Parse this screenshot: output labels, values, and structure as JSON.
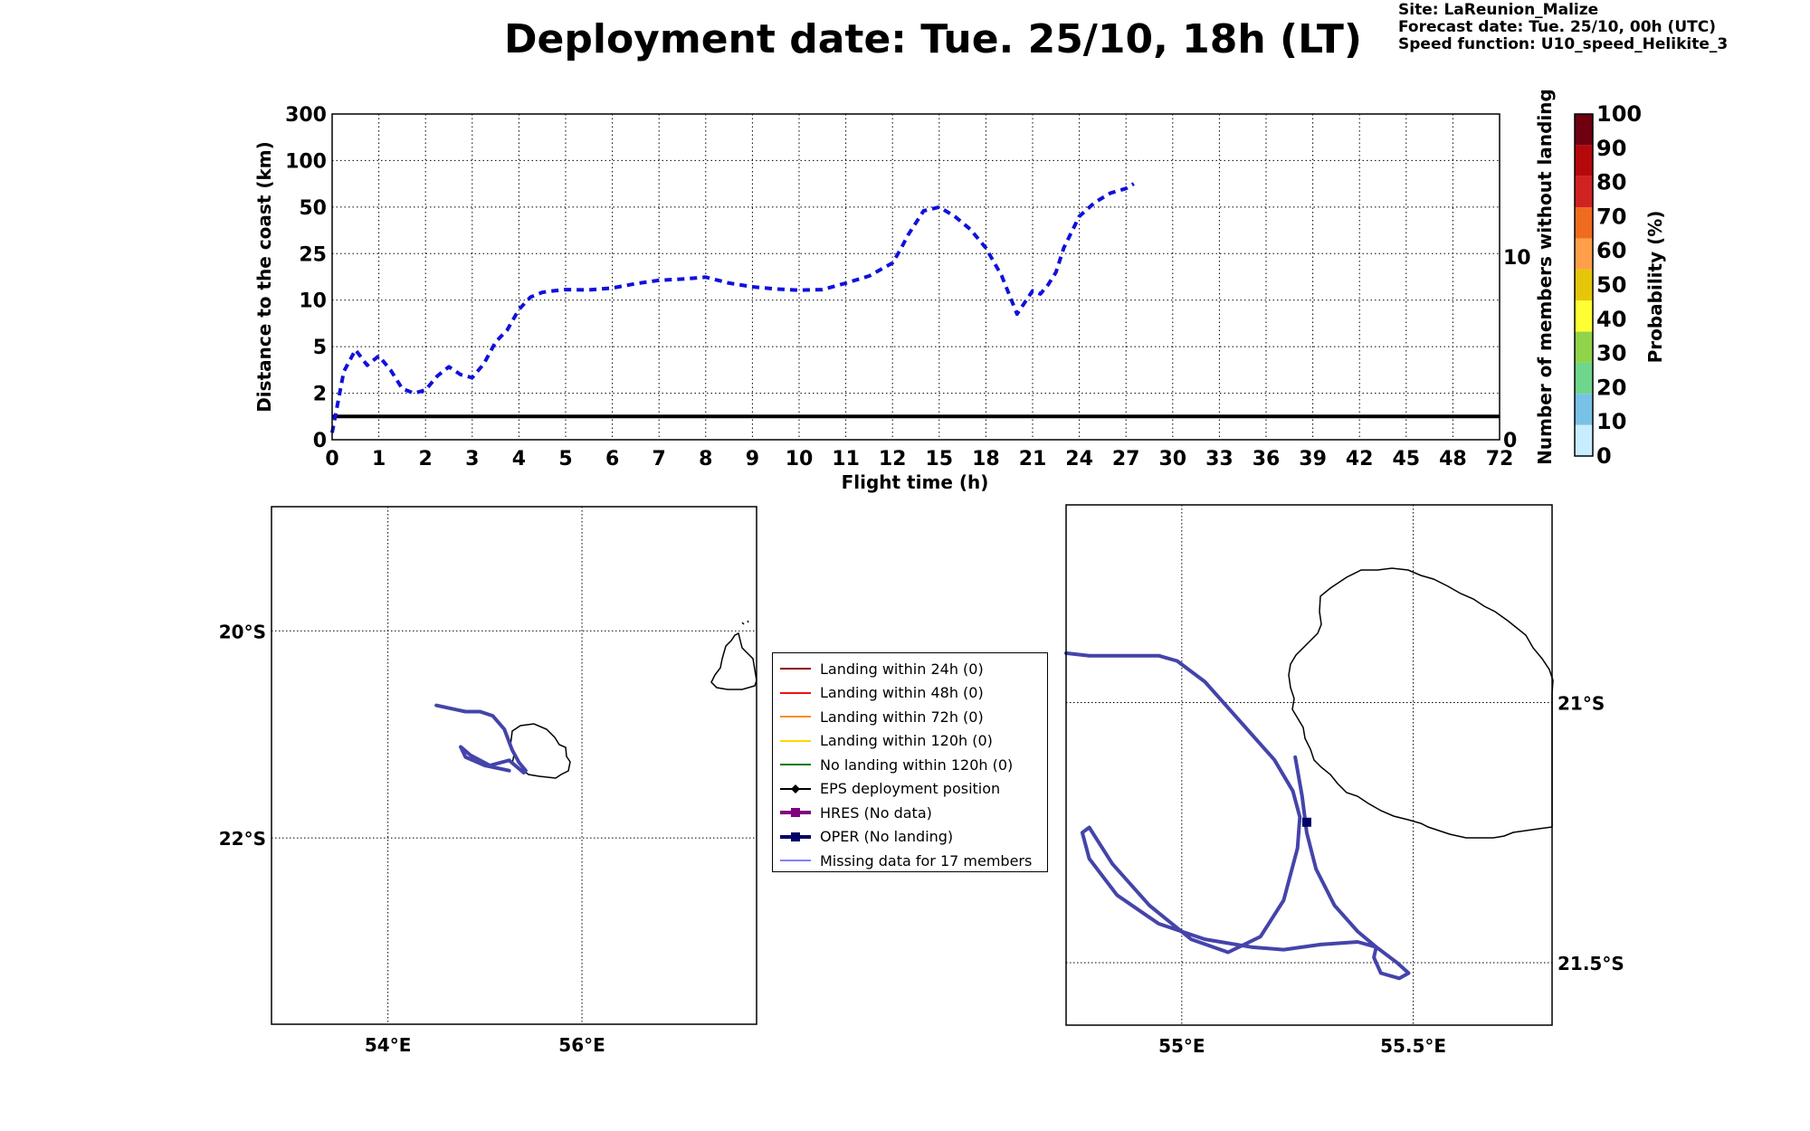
{
  "header": {
    "title": "Deployment date: Tue. 25/10, 18h (LT)",
    "site": "Site: LaReunion_Malize",
    "forecast": "Forecast date: Tue. 25/10, 00h (UTC)",
    "speed": "Speed function: U10_speed_Helikite_3"
  },
  "colors": {
    "series": "#1010dd",
    "track": "#4444aa",
    "threshold": "#000000"
  },
  "legend": [
    {
      "label": "Landing within 24h (0)",
      "color": "#8b0000",
      "marker": "none",
      "width": 2
    },
    {
      "label": "Landing within 48h (0)",
      "color": "#ee1111",
      "marker": "none",
      "width": 2
    },
    {
      "label": "Landing within 72h (0)",
      "color": "#ff8c00",
      "marker": "none",
      "width": 2
    },
    {
      "label": "Landing within 120h (0)",
      "color": "#ffd700",
      "marker": "none",
      "width": 2
    },
    {
      "label": "No landing within 120h (0)",
      "color": "#007a00",
      "marker": "none",
      "width": 2
    },
    {
      "label": "EPS deployment position",
      "color": "#000000",
      "marker": "diamond",
      "width": 2
    },
    {
      "label": "HRES (No data)",
      "color": "#800080",
      "marker": "square",
      "width": 4
    },
    {
      "label": "OPER (No landing)",
      "color": "#000066",
      "marker": "square",
      "width": 4
    },
    {
      "label": "Missing data for 17 members",
      "color": "#5555ff",
      "marker": "none",
      "width": 1.5
    }
  ],
  "chart_data": [
    {
      "type": "line",
      "xlabel": "Flight time (h)",
      "ylabel": "Distance to the coast (km)",
      "y2label": "Number of members without landing",
      "x_ticks": [
        "0",
        "1",
        "2",
        "3",
        "4",
        "5",
        "6",
        "7",
        "8",
        "9",
        "10",
        "11",
        "12",
        "15",
        "18",
        "21",
        "24",
        "27",
        "30",
        "33",
        "36",
        "39",
        "42",
        "45",
        "48",
        "72"
      ],
      "y_ticks": [
        "0",
        "2",
        "5",
        "10",
        "25",
        "50",
        "100",
        "300"
      ],
      "y2_ticks": [
        "0",
        "10"
      ],
      "threshold_km": 1,
      "grid": true,
      "series": [
        {
          "style": "dashed",
          "x": [
            0,
            0.25,
            0.5,
            0.75,
            1,
            1.25,
            1.5,
            1.75,
            2,
            2.25,
            2.5,
            2.75,
            3,
            3.25,
            3.5,
            3.75,
            4,
            4.25,
            4.5,
            4.75,
            5,
            5.5,
            6,
            6.5,
            7,
            7.5,
            8,
            8.5,
            9,
            9.5,
            10,
            10.5,
            11,
            11.5,
            12,
            12.5,
            13,
            14,
            15,
            16,
            17,
            18,
            19,
            20,
            21,
            21.5,
            22,
            22.5,
            23,
            24,
            25,
            26,
            27,
            27.5
          ],
          "y": [
            0.3,
            3.4,
            4.8,
            3.8,
            4.4,
            3.5,
            2.3,
            2.0,
            2.2,
            3.1,
            3.7,
            3.2,
            3.0,
            3.9,
            5.5,
            6.8,
            9.0,
            11.0,
            12.5,
            13.0,
            13.4,
            13.3,
            13.9,
            15.3,
            16.4,
            16.8,
            17.4,
            15.5,
            14.3,
            13.6,
            13.2,
            13.4,
            15.5,
            17.8,
            22.0,
            27.0,
            35.0,
            48.0,
            50.0,
            45.0,
            38.0,
            28.0,
            18.0,
            8.5,
            13.0,
            12.0,
            15.0,
            19.0,
            28.0,
            45.0,
            55.0,
            65.0,
            70.0,
            75.0
          ]
        }
      ]
    },
    {
      "type": "map",
      "lon_ticks": [
        "54°E",
        "56°E"
      ],
      "lat_ticks": [
        "20°S",
        "22°S"
      ],
      "extent": {
        "lon": [
          52.8,
          57.8
        ],
        "lat": [
          -18.8,
          -23.8
        ]
      },
      "grid_lon": [
        54,
        56
      ],
      "grid_lat": [
        -20,
        -22
      ],
      "track": {
        "lon": [
          55.25,
          55.0,
          54.8,
          54.75,
          54.85,
          55.05,
          55.25,
          55.4,
          55.42,
          55.35,
          55.28,
          55.2,
          55.08,
          54.95,
          54.8,
          54.65,
          54.5
        ],
        "lat": [
          -21.35,
          -21.3,
          -21.22,
          -21.12,
          -21.2,
          -21.3,
          -21.25,
          -21.37,
          -21.35,
          -21.27,
          -21.15,
          -20.95,
          -20.82,
          -20.78,
          -20.78,
          -20.75,
          -20.72
        ]
      }
    },
    {
      "type": "map",
      "lon_ticks": [
        "55°E",
        "55.5°E"
      ],
      "lat_ticks": [
        "21°S",
        "21.5°S"
      ],
      "extent": {
        "lon": [
          54.75,
          55.8
        ],
        "lat": [
          -20.62,
          -21.62
        ]
      },
      "grid_lon": [
        55.0,
        55.5
      ],
      "grid_lat": [
        -21.0,
        -21.5
      ],
      "oper_point": {
        "lon": 55.27,
        "lat": -21.23
      },
      "track": {
        "lon": [
          55.245,
          55.26,
          55.27,
          55.29,
          55.33,
          55.38,
          55.42,
          55.465,
          55.49,
          55.47,
          55.43,
          55.415,
          55.42,
          55.38,
          55.3,
          55.22,
          55.15,
          55.05,
          54.95,
          54.86,
          54.8,
          54.785,
          54.8,
          54.85,
          54.93,
          55.02,
          55.1,
          55.17,
          55.22,
          55.25,
          55.255,
          55.24,
          55.2,
          55.13,
          55.05,
          54.99,
          54.95,
          54.9,
          54.8,
          54.75
        ],
        "lat": [
          -21.105,
          -21.18,
          -21.25,
          -21.32,
          -21.39,
          -21.44,
          -21.47,
          -21.5,
          -21.52,
          -21.53,
          -21.52,
          -21.49,
          -21.47,
          -21.46,
          -21.465,
          -21.475,
          -21.47,
          -21.455,
          -21.425,
          -21.37,
          -21.3,
          -21.25,
          -21.24,
          -21.31,
          -21.39,
          -21.455,
          -21.48,
          -21.45,
          -21.38,
          -21.28,
          -21.22,
          -21.17,
          -21.11,
          -21.04,
          -20.96,
          -20.92,
          -20.91,
          -20.91,
          -20.91,
          -20.905
        ]
      }
    }
  ],
  "colorbar": {
    "label": "Probability (%)",
    "ticks": [
      "0",
      "10",
      "20",
      "30",
      "40",
      "50",
      "60",
      "70",
      "80",
      "90",
      "100"
    ],
    "colors": [
      "#c6eeff",
      "#79c1e6",
      "#6fd68e",
      "#8fd44b",
      "#ffff33",
      "#e6c60a",
      "#ff9f4a",
      "#ef6b1f",
      "#d12222",
      "#b5080b",
      "#6e0010"
    ]
  }
}
